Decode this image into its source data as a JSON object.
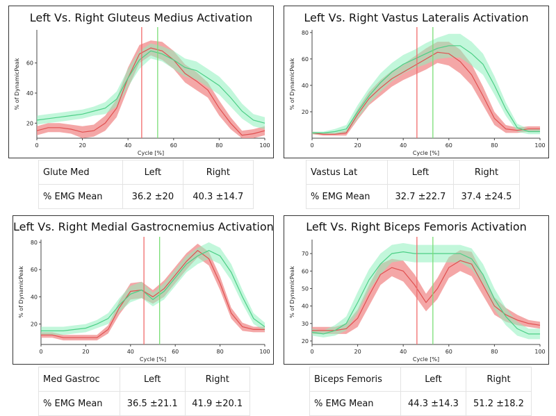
{
  "colors": {
    "left": "#e05050",
    "left_band": "#f08a8a",
    "right": "#4ccf86",
    "right_band": "#8ff0bd",
    "left_marker": "#f06a6a",
    "right_marker": "#7ade76"
  },
  "charts": [
    {
      "title": "Left Vs. Right Gluteus Medius Activation",
      "xlabel": "Cycle [%]",
      "ylabel": "% of DynamicPeak",
      "xticks": [
        "0",
        "20",
        "40",
        "60",
        "80",
        "100"
      ],
      "yticks": [
        "20",
        "40",
        "60"
      ],
      "ylim": [
        10,
        82
      ],
      "left_marker": 46,
      "right_marker": 53,
      "table": {
        "muscle": "Glute Med",
        "left_header": "Left",
        "right_header": "Right",
        "row_label": "% EMG Mean",
        "left_value": "36.2 ±20",
        "right_value": "40.3 ±14.7"
      }
    },
    {
      "title": "Left Vs. Right Vastus Lateralis Activation",
      "xlabel": "Cycle [%]",
      "ylabel": "% of DynamicPeak",
      "xticks": [
        "0",
        "20",
        "40",
        "60",
        "80",
        "100"
      ],
      "yticks": [
        "20",
        "40",
        "60",
        "80"
      ],
      "ylim": [
        0,
        82
      ],
      "left_marker": 46,
      "right_marker": 53,
      "table": {
        "muscle": "Vastus Lat",
        "left_header": "Left",
        "right_header": "Right",
        "row_label": "% EMG Mean",
        "left_value": "32.7 ±22.7",
        "right_value": "37.4 ±24.5"
      }
    },
    {
      "title": "Left Vs. Right Medial  Gastrocnemius Activation",
      "xlabel": "Cycle [%]",
      "ylabel": "% of DynamicPeak",
      "xticks": [
        "0",
        "20",
        "40",
        "60",
        "80",
        "100"
      ],
      "yticks": [
        "20",
        "40",
        "60",
        "80"
      ],
      "ylim": [
        5,
        82
      ],
      "left_marker": 46,
      "right_marker": 53,
      "table": {
        "muscle": "Med Gastroc",
        "left_header": "Left",
        "right_header": "Right",
        "row_label": "% EMG Mean",
        "left_value": "36.5 ±21.1",
        "right_value": "41.9 ±20.1"
      }
    },
    {
      "title": "Left Vs. Right Biceps Femoris Activation",
      "xlabel": "Cycle [%]",
      "ylabel": "% of DynamicPeak",
      "xticks": [
        "0",
        "20",
        "40",
        "60",
        "80",
        "100"
      ],
      "yticks": [
        "20",
        "30",
        "40",
        "50",
        "60",
        "70"
      ],
      "ylim": [
        18,
        78
      ],
      "left_marker": 46,
      "right_marker": 53,
      "table": {
        "muscle": "Biceps Femoris",
        "left_header": "Left",
        "right_header": "Right",
        "row_label": "% EMG Mean",
        "left_value": "44.3 ±14.3",
        "right_value": "51.2 ±18.2"
      }
    }
  ],
  "chart_data": [
    {
      "type": "line",
      "title": "Left Vs. Right Gluteus Medius Activation",
      "xlabel": "Cycle [%]",
      "ylabel": "% of DynamicPeak",
      "x": [
        0,
        5,
        10,
        15,
        20,
        25,
        30,
        35,
        40,
        45,
        50,
        55,
        60,
        65,
        70,
        75,
        80,
        85,
        90,
        95,
        100
      ],
      "series": [
        {
          "name": "Left",
          "values": [
            15,
            17,
            17,
            16,
            14,
            15,
            20,
            30,
            50,
            66,
            70,
            68,
            62,
            53,
            48,
            42,
            30,
            20,
            12,
            13,
            15
          ],
          "sd": [
            3,
            3,
            3,
            3,
            4,
            4,
            5,
            6,
            7,
            6,
            5,
            6,
            6,
            6,
            6,
            5,
            5,
            4,
            3,
            3,
            3
          ]
        },
        {
          "name": "Right",
          "values": [
            22,
            23,
            24,
            25,
            26,
            28,
            30,
            36,
            50,
            62,
            68,
            66,
            62,
            57,
            55,
            50,
            45,
            37,
            28,
            22,
            20
          ],
          "sd": [
            3,
            3,
            3,
            3,
            3,
            3,
            4,
            5,
            6,
            6,
            5,
            5,
            6,
            6,
            6,
            6,
            6,
            6,
            5,
            4,
            4
          ]
        }
      ],
      "xlim": [
        0,
        100
      ],
      "ylim": [
        10,
        82
      ]
    },
    {
      "type": "line",
      "title": "Left Vs. Right Vastus Lateralis Activation",
      "xlabel": "Cycle [%]",
      "ylabel": "% of DynamicPeak",
      "x": [
        0,
        5,
        10,
        15,
        20,
        25,
        30,
        35,
        40,
        45,
        50,
        55,
        60,
        65,
        70,
        75,
        80,
        85,
        90,
        95,
        100
      ],
      "series": [
        {
          "name": "Left",
          "values": [
            4,
            3,
            3,
            4,
            18,
            30,
            38,
            45,
            50,
            55,
            60,
            65,
            64,
            58,
            48,
            32,
            15,
            7,
            6,
            7,
            7
          ],
          "sd": [
            1,
            1,
            1,
            2,
            4,
            5,
            6,
            6,
            6,
            7,
            8,
            8,
            9,
            9,
            8,
            7,
            5,
            3,
            2,
            2,
            2
          ]
        },
        {
          "name": "Right",
          "values": [
            4,
            4,
            5,
            7,
            20,
            32,
            42,
            50,
            56,
            60,
            64,
            68,
            70,
            70,
            64,
            56,
            40,
            22,
            8,
            5,
            5
          ],
          "sd": [
            1,
            1,
            2,
            3,
            5,
            6,
            7,
            7,
            7,
            7,
            8,
            8,
            9,
            9,
            9,
            8,
            7,
            5,
            3,
            2,
            2
          ]
        }
      ],
      "xlim": [
        0,
        100
      ],
      "ylim": [
        0,
        82
      ]
    },
    {
      "type": "line",
      "title": "Left Vs. Right Medial  Gastrocnemius Activation",
      "xlabel": "Cycle [%]",
      "ylabel": "% of DynamicPeak",
      "x": [
        0,
        5,
        10,
        15,
        20,
        25,
        30,
        35,
        40,
        45,
        50,
        55,
        60,
        65,
        70,
        75,
        80,
        85,
        90,
        95,
        100
      ],
      "series": [
        {
          "name": "Left",
          "values": [
            12,
            12,
            10,
            10,
            10,
            10,
            16,
            32,
            44,
            45,
            40,
            46,
            56,
            66,
            74,
            68,
            50,
            28,
            18,
            16,
            16
          ],
          "sd": [
            2,
            2,
            2,
            2,
            2,
            2,
            3,
            5,
            6,
            6,
            5,
            6,
            6,
            6,
            5,
            5,
            5,
            4,
            3,
            2,
            2
          ]
        },
        {
          "name": "Right",
          "values": [
            15,
            15,
            15,
            16,
            17,
            20,
            24,
            34,
            42,
            45,
            38,
            44,
            54,
            64,
            70,
            74,
            70,
            58,
            40,
            24,
            18
          ],
          "sd": [
            3,
            3,
            3,
            3,
            3,
            3,
            4,
            5,
            6,
            6,
            5,
            6,
            6,
            6,
            6,
            6,
            6,
            6,
            5,
            4,
            3
          ]
        }
      ],
      "xlim": [
        0,
        100
      ],
      "ylim": [
        5,
        82
      ]
    },
    {
      "type": "line",
      "title": "Left Vs. Right Biceps Femoris Activation",
      "xlabel": "Cycle [%]",
      "ylabel": "% of DynamicPeak",
      "x": [
        0,
        5,
        10,
        15,
        20,
        25,
        30,
        35,
        40,
        45,
        50,
        55,
        60,
        65,
        70,
        75,
        80,
        85,
        90,
        95,
        100
      ],
      "series": [
        {
          "name": "Left",
          "values": [
            26,
            26,
            26,
            27,
            33,
            46,
            58,
            62,
            60,
            52,
            42,
            50,
            62,
            66,
            64,
            52,
            40,
            35,
            32,
            30,
            29
          ],
          "sd": [
            2,
            2,
            2,
            3,
            5,
            6,
            6,
            5,
            6,
            6,
            5,
            6,
            6,
            6,
            7,
            6,
            5,
            4,
            3,
            2,
            2
          ]
        },
        {
          "name": "Right",
          "values": [
            25,
            24,
            26,
            30,
            42,
            55,
            64,
            70,
            71,
            70,
            70,
            70,
            70,
            70,
            67,
            58,
            44,
            34,
            27,
            24,
            24
          ],
          "sd": [
            2,
            2,
            3,
            4,
            6,
            6,
            6,
            5,
            5,
            5,
            5,
            5,
            5,
            5,
            6,
            6,
            6,
            5,
            4,
            3,
            3
          ]
        }
      ],
      "xlim": [
        0,
        100
      ],
      "ylim": [
        18,
        78
      ]
    }
  ]
}
